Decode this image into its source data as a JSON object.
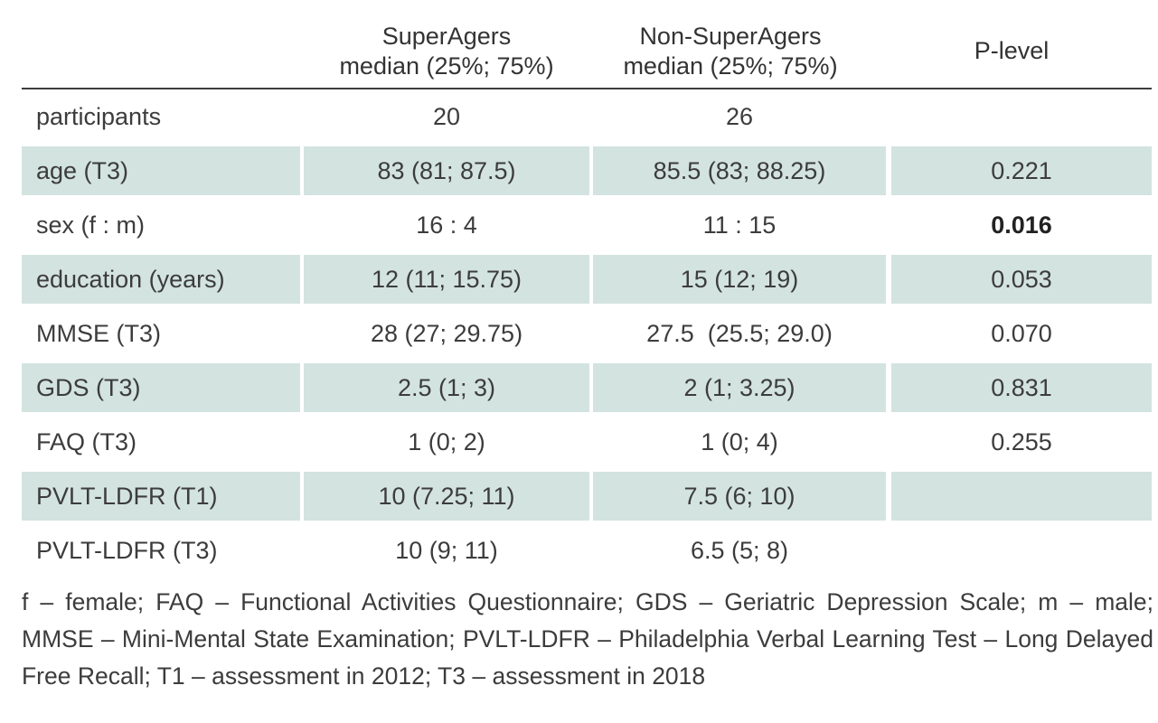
{
  "headers": {
    "col1_line1": "SuperAgers",
    "col1_line2": "median (25%; 75%)",
    "col2_line1": "Non-SuperAgers",
    "col2_line2": "median (25%; 75%)",
    "col3": "P-level"
  },
  "rows": [
    {
      "label": "participants",
      "super": "20",
      "non_super": "26",
      "p": ""
    },
    {
      "label": "age (T3)",
      "super": "83 (81; 87.5)",
      "non_super": "85.5 (83; 88.25)",
      "p": "0.221"
    },
    {
      "label": "sex (f : m)",
      "super": "16 : 4",
      "non_super": "11 : 15",
      "p": "0.016"
    },
    {
      "label": "education (years)",
      "super": "12 (11; 15.75)",
      "non_super": "15 (12; 19)",
      "p": "0.053"
    },
    {
      "label": "MMSE (T3)",
      "super": "28 (27; 29.75)",
      "non_super": "27.5  (25.5; 29.0)",
      "p": "0.070"
    },
    {
      "label": "GDS (T3)",
      "super": "2.5 (1; 3)",
      "non_super": "2 (1; 3.25)",
      "p": "0.831"
    },
    {
      "label": "FAQ (T3)",
      "super": "1 (0; 2)",
      "non_super": "1 (0; 4)",
      "p": "0.255"
    },
    {
      "label": "PVLT-LDFR (T1)",
      "super": "10 (7.25; 11)",
      "non_super": "7.5 (6; 10)",
      "p": ""
    },
    {
      "label": "PVLT-LDFR (T3)",
      "super": "10 (9; 11)",
      "non_super": "6.5 (5; 8)",
      "p": ""
    }
  ],
  "footnote": "f – female; FAQ – Functional Activities Questionnaire; GDS – Geriatric Depression Scale; m – male; MMSE – Mini-Mental State Examination; PVLT-LDFR – Philadelphia Verbal Learning Test – Long Delayed Free Recall; T1 – assessment in 2012; T3 – assessment in 2018",
  "colors": {
    "row_shade": "#d3e3e0",
    "rule": "#3d3d3d",
    "text": "#3c3c3c"
  }
}
